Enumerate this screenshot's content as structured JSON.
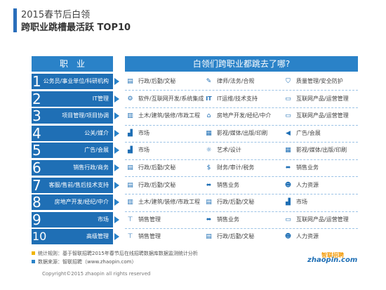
{
  "header": {
    "title_line1": "2015春节后白领",
    "title_line2": "跨职业跳槽最活跃 TOP10"
  },
  "table_header": {
    "job": "职　业",
    "destinations": "白领们跨职业都跳去了哪?"
  },
  "chart_data": {
    "type": "table",
    "columns": [
      "职业",
      "白领们跨职业都跳去了哪?"
    ],
    "rows": [
      {
        "rank": "1",
        "job": "公务员/事业单位/科研机构",
        "destinations": [
          {
            "label": "行政/后勤/文秘",
            "icon": "document-icon"
          },
          {
            "label": "律师/法务/合规",
            "icon": "pencil-icon"
          },
          {
            "label": "质量管理/安全防护",
            "icon": "shield-icon"
          }
        ]
      },
      {
        "rank": "2",
        "job": "IT管理",
        "destinations": [
          {
            "label": "软件/互联网开发/系统集成",
            "icon": "gear-icon"
          },
          {
            "label": "IT运维/技术支持",
            "icon": "it-icon"
          },
          {
            "label": "互联网产品/运营管理",
            "icon": "monitor-icon"
          }
        ]
      },
      {
        "rank": "3",
        "job": "项目管理/项目协调",
        "destinations": [
          {
            "label": "土木/建筑/装修/市政工程",
            "icon": "building-icon"
          },
          {
            "label": "房地产开发/经纪/中介",
            "icon": "house-icon"
          },
          {
            "label": "互联网产品/运营管理",
            "icon": "monitor-icon"
          }
        ]
      },
      {
        "rank": "4",
        "job": "公关/媒介",
        "destinations": [
          {
            "label": "市场",
            "icon": "chart-icon"
          },
          {
            "label": "影视/媒体/出版/印刷",
            "icon": "film-icon"
          },
          {
            "label": "广告/会展",
            "icon": "megaphone-icon"
          }
        ]
      },
      {
        "rank": "5",
        "job": "广告/会展",
        "destinations": [
          {
            "label": "市场",
            "icon": "chart-icon"
          },
          {
            "label": "艺术/设计",
            "icon": "bulb-icon"
          },
          {
            "label": "影视/媒体/出版/印刷",
            "icon": "film-icon"
          }
        ]
      },
      {
        "rank": "6",
        "job": "销售行政/商务",
        "destinations": [
          {
            "label": "行政/后勤/文秘",
            "icon": "document-icon"
          },
          {
            "label": "财务/审计/税务",
            "icon": "dollar-icon"
          },
          {
            "label": "销售业务",
            "icon": "handshake-icon"
          }
        ]
      },
      {
        "rank": "7",
        "job": "客服/售前/售后技术支持",
        "destinations": [
          {
            "label": "行政/后勤/文秘",
            "icon": "document-icon"
          },
          {
            "label": "销售业务",
            "icon": "handshake-icon"
          },
          {
            "label": "人力资源",
            "icon": "people-icon"
          }
        ]
      },
      {
        "rank": "8",
        "job": "房地产开发/经纪/中介",
        "destinations": [
          {
            "label": "土木/建筑/装修/市政工程",
            "icon": "building-icon"
          },
          {
            "label": "行政/后勤/文秘",
            "icon": "document-icon"
          },
          {
            "label": "市场",
            "icon": "chart-icon"
          }
        ]
      },
      {
        "rank": "9",
        "job": "市场",
        "destinations": [
          {
            "label": "销售管理",
            "icon": "org-icon"
          },
          {
            "label": "销售业务",
            "icon": "handshake-icon"
          },
          {
            "label": "互联网产品/运营管理",
            "icon": "monitor-icon"
          }
        ]
      },
      {
        "rank": "10",
        "job": "高级管理",
        "destinations": [
          {
            "label": "销售管理",
            "icon": "org-icon"
          },
          {
            "label": "行政/后勤/文秘",
            "icon": "document-icon"
          },
          {
            "label": "人力资源",
            "icon": "people-icon"
          }
        ]
      }
    ]
  },
  "footer": {
    "note1": "统计规则：基于智联招聘2015年春节后在线招聘数据库数据监测统计分析",
    "note2": "数据来源：智联招聘（www.zhaopin.com）",
    "copyright": "Copyright©2015 zhaopin all rights reserved",
    "logo_cn": "智联招聘",
    "logo_en": "zhaopin.com"
  },
  "colors": {
    "primary": "#1f6fb5",
    "header": "#2a82c8",
    "note1_dot": "#f0b400",
    "note2_dot": "#2a82c8",
    "logo_orange": "#f39800"
  }
}
